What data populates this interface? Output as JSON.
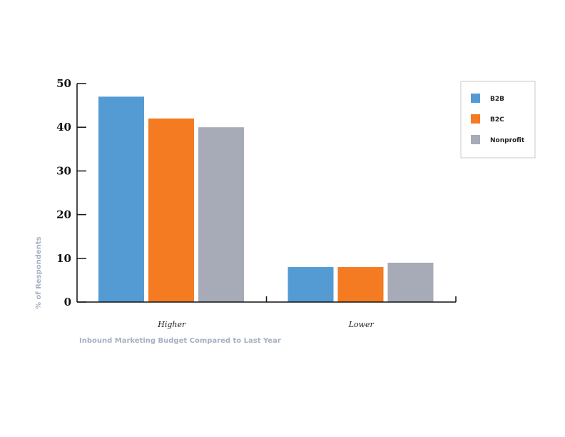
{
  "chart_data": {
    "type": "bar",
    "categories": [
      "Higher",
      "Lower"
    ],
    "series": [
      {
        "name": "B2B",
        "values": [
          47,
          8
        ],
        "color": "#559bd3"
      },
      {
        "name": "B2C",
        "values": [
          42,
          8
        ],
        "color": "#f47b22"
      },
      {
        "name": "Nonprofit",
        "values": [
          40,
          9
        ],
        "color": "#a6abb7"
      }
    ],
    "xlabel": "Inbound Marketing Budget Compared to Last Year",
    "ylabel": "% of Respondents",
    "ylim": [
      0,
      50
    ],
    "yticks": [
      0,
      10,
      20,
      30,
      40,
      50
    ],
    "grid": false,
    "legend_position": "top-right"
  }
}
